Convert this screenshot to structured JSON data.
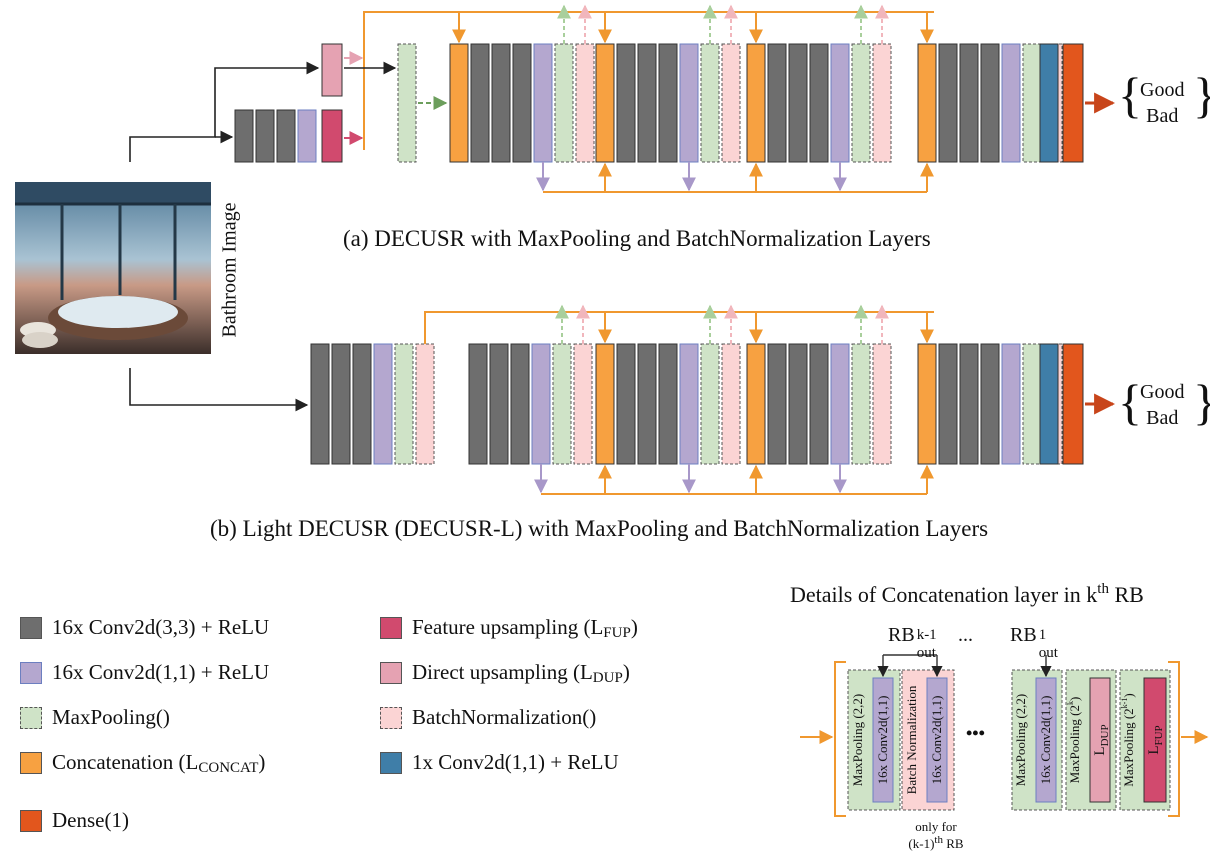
{
  "image_label": "Bathroom Image",
  "outputs": {
    "good": "Good",
    "bad": "Bad"
  },
  "caption_a": "(a)  DECUSR with MaxPooling and BatchNormalization Layers",
  "caption_b": "(b)  Light DECUSR (DECUSR-L) with MaxPooling and BatchNormalization Layers",
  "legend": {
    "conv3": "16x Conv2d(3,3) + ReLU",
    "conv1": "16x Conv2d(1,1) + ReLU",
    "maxpool": "MaxPooling()",
    "concat_main": "Concatenation (L",
    "concat_sub": "CONCAT",
    "concat_end": ")",
    "dense": "Dense(1)",
    "fup_main": "Feature upsampling (L",
    "fup_sub": "FUP",
    "fup_end": ")",
    "dup_main": "Direct upsampling (L",
    "dup_sub": "DUP",
    "dup_end": ")",
    "batchnorm": "BatchNormalization()",
    "conv1x1": "1x Conv2d(1,1) + ReLU"
  },
  "detail": {
    "title_main": "Details of Concatenation layer in k",
    "title_sup": "th",
    "title_end": " RB",
    "rb_main": "RB",
    "rb_k_sup": "k-1",
    "rb_1_sup": "1",
    "rb_sub": "out",
    "ellipsis_small": "...",
    "ellipsis_big": "•••",
    "blocks": {
      "maxpool22": "MaxPooling (2,2)",
      "conv11": "16x Conv2d(1,1)",
      "batchnorm": "Batch Normalization",
      "maxpool2k": "MaxPooling (2",
      "maxpool2k_sup": "k",
      "maxpool2k_end": ")",
      "maxpool2k1": "MaxPooling (2",
      "maxpool2k1_sup": "k-1",
      "maxpool2k1_end": ")",
      "ldup": "L",
      "ldup_sub": "DUP",
      "lfup": "L",
      "lfup_sub": "FUP"
    },
    "note_line1": "only for",
    "note_line2_main": "(k-1)",
    "note_line2_sup": "th",
    "note_line2_end": " RB"
  },
  "colors": {
    "conv3": "#6e6e6e",
    "conv1": "#b4a7cf",
    "maxpool": "#cfe3c7",
    "concat": "#f7a141",
    "dense": "#e2561d",
    "fup": "#d14a6e",
    "dup": "#e5a2b2",
    "batchnorm": "#fbd4d4",
    "conv1x1": "#3f7ea8",
    "orange_line": "#f0982f",
    "purple_arrow": "#a898c9",
    "green_arrow": "#6c9e5c"
  }
}
